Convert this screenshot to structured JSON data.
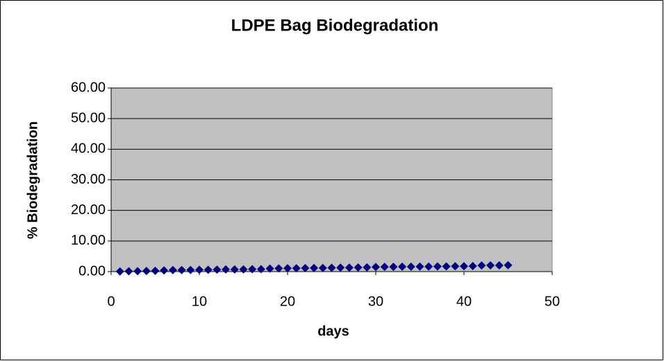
{
  "chart_data": {
    "type": "scatter",
    "title": "LDPE Bag Biodegradation",
    "x_label": "days",
    "y_label": "% Biodegradation",
    "x": [
      1,
      2,
      3,
      4,
      5,
      6,
      7,
      8,
      9,
      10,
      11,
      12,
      13,
      14,
      15,
      16,
      17,
      18,
      19,
      20,
      21,
      22,
      23,
      24,
      25,
      26,
      27,
      28,
      29,
      30,
      31,
      32,
      33,
      34,
      35,
      36,
      37,
      38,
      39,
      40,
      41,
      42,
      43,
      44,
      45
    ],
    "values": [
      0.05,
      0.1,
      0.15,
      0.2,
      0.25,
      0.4,
      0.5,
      0.5,
      0.55,
      0.6,
      0.6,
      0.65,
      0.7,
      0.7,
      0.75,
      0.8,
      0.8,
      1.0,
      1.05,
      1.1,
      1.1,
      1.15,
      1.2,
      1.2,
      1.25,
      1.3,
      1.3,
      1.35,
      1.4,
      1.5,
      1.55,
      1.55,
      1.6,
      1.6,
      1.65,
      1.65,
      1.7,
      1.7,
      1.75,
      1.75,
      1.8,
      2.0,
      2.05,
      2.05,
      2.1
    ],
    "color": "#000080",
    "xlim": [
      0,
      50
    ],
    "xticks": [
      0,
      10,
      20,
      30,
      40,
      50
    ],
    "ylim": [
      0,
      60
    ],
    "yticks": [
      {
        "value": 0,
        "label": "0.00"
      },
      {
        "value": 10,
        "label": "10.00"
      },
      {
        "value": 20,
        "label": "20.00"
      },
      {
        "value": 30,
        "label": "30.00"
      },
      {
        "value": 40,
        "label": "40.00"
      },
      {
        "value": 50,
        "label": "50.00"
      },
      {
        "value": 60,
        "label": "60.00"
      }
    ],
    "grid": true,
    "plot_background": "#c0c0c0"
  }
}
